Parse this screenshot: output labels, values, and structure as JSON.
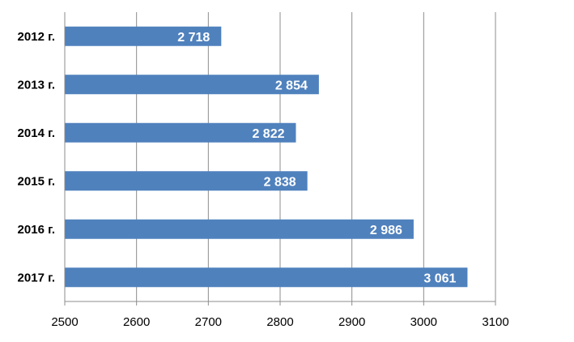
{
  "chart_data": {
    "type": "bar",
    "orientation": "horizontal",
    "categories": [
      "2012 г.",
      "2013 г.",
      "2014 г.",
      "2015 г.",
      "2016 г.",
      "2017 г."
    ],
    "values": [
      2718,
      2854,
      2822,
      2838,
      2986,
      3061
    ],
    "data_labels": [
      "2 718",
      "2 854",
      "2 822",
      "2 838",
      "2 986",
      "3 061"
    ],
    "xlim": [
      2500,
      3100
    ],
    "xticks": [
      2500,
      2600,
      2700,
      2800,
      2900,
      3000,
      3100
    ],
    "grid": "vertical",
    "legend": "none",
    "bar_color": "#4f81bd",
    "grid_color": "#8c8c8c"
  }
}
